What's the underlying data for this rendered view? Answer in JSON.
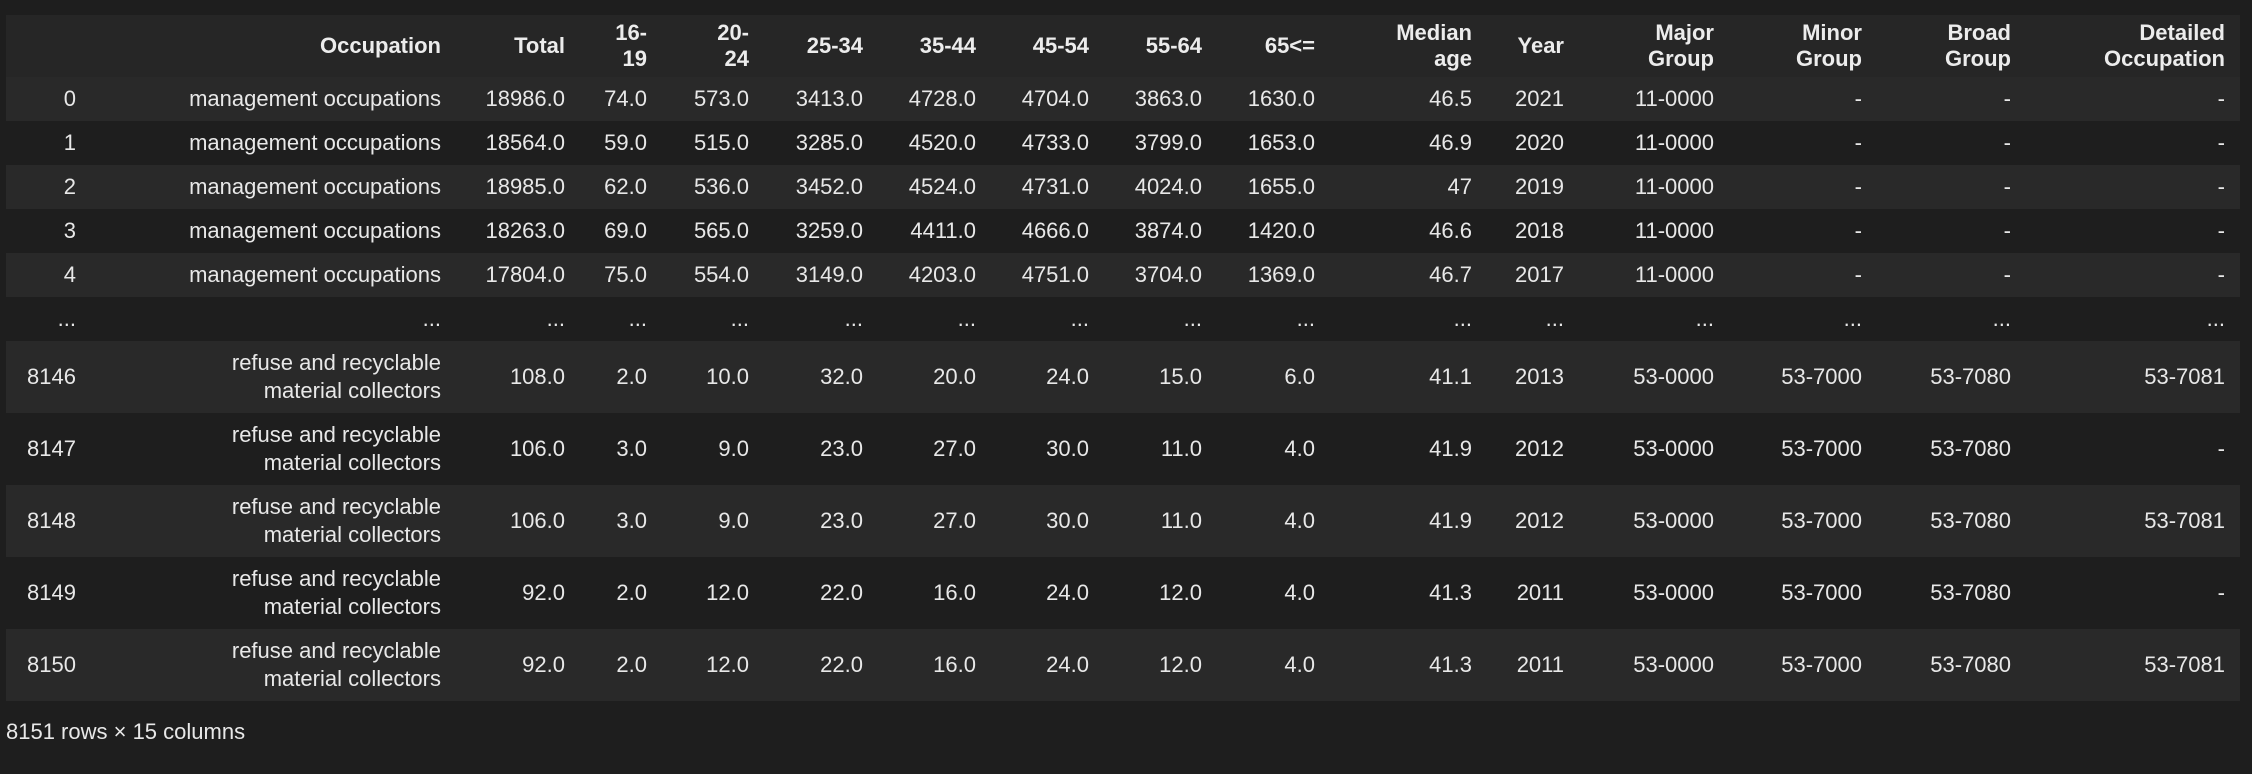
{
  "table": {
    "columns": [
      "",
      "Occupation",
      "Total",
      "16-\n19",
      "20-\n24",
      "25-34",
      "35-44",
      "45-54",
      "55-64",
      "65<=",
      "Median\nage",
      "Year",
      "Major\nGroup",
      "Minor\nGroup",
      "Broad\nGroup",
      "Detailed\nOccupation"
    ],
    "rows": [
      [
        "0",
        "management occupations",
        "18986.0",
        "74.0",
        "573.0",
        "3413.0",
        "4728.0",
        "4704.0",
        "3863.0",
        "1630.0",
        "46.5",
        "2021",
        "11-0000",
        "-",
        "-",
        "-"
      ],
      [
        "1",
        "management occupations",
        "18564.0",
        "59.0",
        "515.0",
        "3285.0",
        "4520.0",
        "4733.0",
        "3799.0",
        "1653.0",
        "46.9",
        "2020",
        "11-0000",
        "-",
        "-",
        "-"
      ],
      [
        "2",
        "management occupations",
        "18985.0",
        "62.0",
        "536.0",
        "3452.0",
        "4524.0",
        "4731.0",
        "4024.0",
        "1655.0",
        "47",
        "2019",
        "11-0000",
        "-",
        "-",
        "-"
      ],
      [
        "3",
        "management occupations",
        "18263.0",
        "69.0",
        "565.0",
        "3259.0",
        "4411.0",
        "4666.0",
        "3874.0",
        "1420.0",
        "46.6",
        "2018",
        "11-0000",
        "-",
        "-",
        "-"
      ],
      [
        "4",
        "management occupations",
        "17804.0",
        "75.0",
        "554.0",
        "3149.0",
        "4203.0",
        "4751.0",
        "3704.0",
        "1369.0",
        "46.7",
        "2017",
        "11-0000",
        "-",
        "-",
        "-"
      ],
      [
        "...",
        "...",
        "...",
        "...",
        "...",
        "...",
        "...",
        "...",
        "...",
        "...",
        "...",
        "...",
        "...",
        "...",
        "...",
        "..."
      ],
      [
        "8146",
        "refuse and recyclable\nmaterial collectors",
        "108.0",
        "2.0",
        "10.0",
        "32.0",
        "20.0",
        "24.0",
        "15.0",
        "6.0",
        "41.1",
        "2013",
        "53-0000",
        "53-7000",
        "53-7080",
        "53-7081"
      ],
      [
        "8147",
        "refuse and recyclable\nmaterial collectors",
        "106.0",
        "3.0",
        "9.0",
        "23.0",
        "27.0",
        "30.0",
        "11.0",
        "4.0",
        "41.9",
        "2012",
        "53-0000",
        "53-7000",
        "53-7080",
        "-"
      ],
      [
        "8148",
        "refuse and recyclable\nmaterial collectors",
        "106.0",
        "3.0",
        "9.0",
        "23.0",
        "27.0",
        "30.0",
        "11.0",
        "4.0",
        "41.9",
        "2012",
        "53-0000",
        "53-7000",
        "53-7080",
        "53-7081"
      ],
      [
        "8149",
        "refuse and recyclable\nmaterial collectors",
        "92.0",
        "2.0",
        "12.0",
        "22.0",
        "16.0",
        "24.0",
        "12.0",
        "4.0",
        "41.3",
        "2011",
        "53-0000",
        "53-7000",
        "53-7080",
        "-"
      ],
      [
        "8150",
        "refuse and recyclable\nmaterial collectors",
        "92.0",
        "2.0",
        "12.0",
        "22.0",
        "16.0",
        "24.0",
        "12.0",
        "4.0",
        "41.3",
        "2011",
        "53-0000",
        "53-7000",
        "53-7080",
        "53-7081"
      ]
    ]
  },
  "footer": {
    "summary": "8151 rows × 15 columns"
  }
}
